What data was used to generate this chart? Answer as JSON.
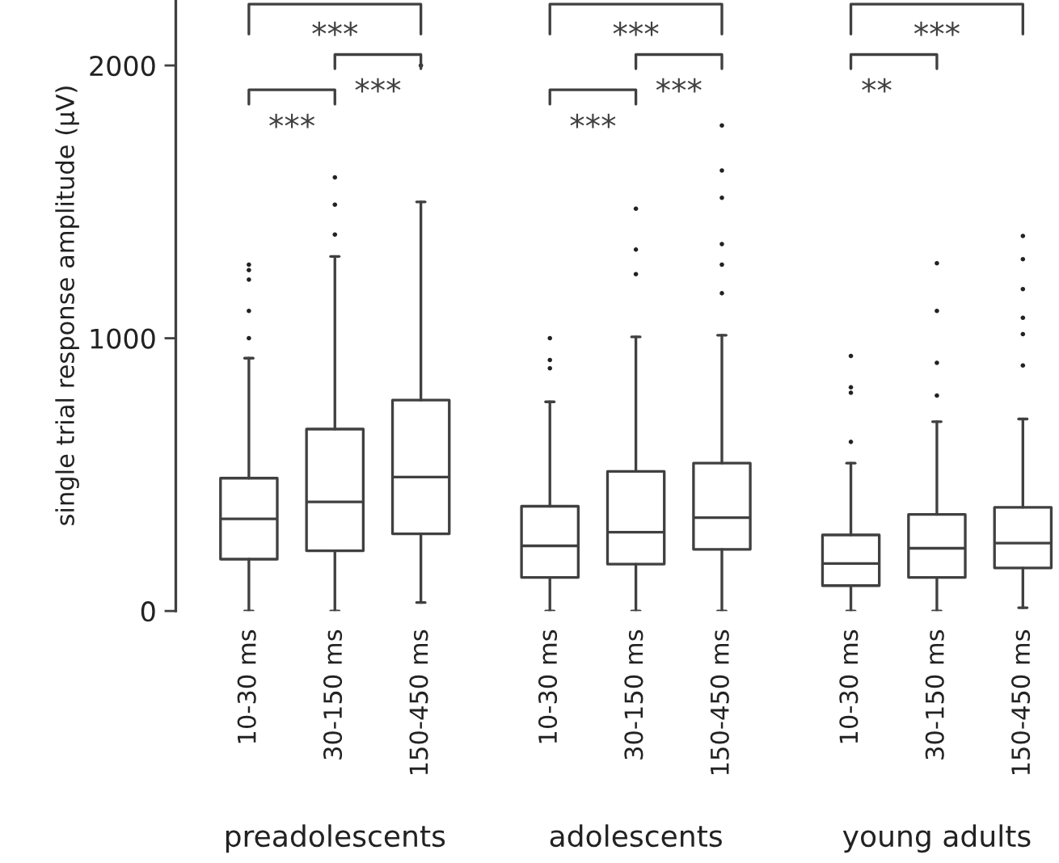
{
  "chart_data": {
    "type": "box",
    "ylabel": "single trial response amplitude (µV)",
    "categories": [
      "10-30 ms",
      "30-150 ms",
      "150-450 ms",
      "10-30 ms",
      "30-150 ms",
      "150-450 ms",
      "10-30 ms",
      "30-150 ms",
      "150-450 ms"
    ],
    "boxes": [
      {
        "low": 0,
        "q1": 190,
        "median": 338,
        "q3": 487,
        "high": 927,
        "outliers": [
          1270,
          1250,
          1215,
          1100,
          1000
        ]
      },
      {
        "low": 0,
        "q1": 221,
        "median": 400,
        "q3": 667,
        "high": 1300,
        "outliers": [
          1590,
          1490,
          1380
        ]
      },
      {
        "low": 31,
        "q1": 283,
        "median": 491,
        "q3": 773,
        "high": 1500,
        "outliers": [
          2000
        ]
      },
      {
        "low": 0,
        "q1": 123,
        "median": 239,
        "q3": 384,
        "high": 767,
        "outliers": [
          1000,
          920,
          890
        ]
      },
      {
        "low": 0,
        "q1": 172,
        "median": 289,
        "q3": 512,
        "high": 1005,
        "outliers": [
          1475,
          1325,
          1235
        ]
      },
      {
        "low": 0,
        "q1": 226,
        "median": 342,
        "q3": 542,
        "high": 1011,
        "outliers": [
          1780,
          1615,
          1515,
          1345,
          1270,
          1165
        ]
      },
      {
        "low": 0,
        "q1": 93,
        "median": 174,
        "q3": 279,
        "high": 542,
        "outliers": [
          935,
          820,
          800,
          620
        ]
      },
      {
        "low": 0,
        "q1": 123,
        "median": 230,
        "q3": 354,
        "high": 694,
        "outliers": [
          1275,
          1100,
          910,
          790
        ]
      },
      {
        "low": 12,
        "q1": 158,
        "median": 249,
        "q3": 380,
        "high": 704,
        "outliers": [
          1375,
          1290,
          1180,
          1075,
          1015,
          900
        ]
      }
    ],
    "ylim": [
      0,
      2240
    ],
    "yticks": [
      0,
      1000,
      2000
    ],
    "grid": false,
    "annotations": [
      "***",
      "***",
      "***",
      "***",
      "***",
      "***",
      "***",
      "**",
      "preadolescents",
      "adolescents",
      "young adults"
    ]
  }
}
